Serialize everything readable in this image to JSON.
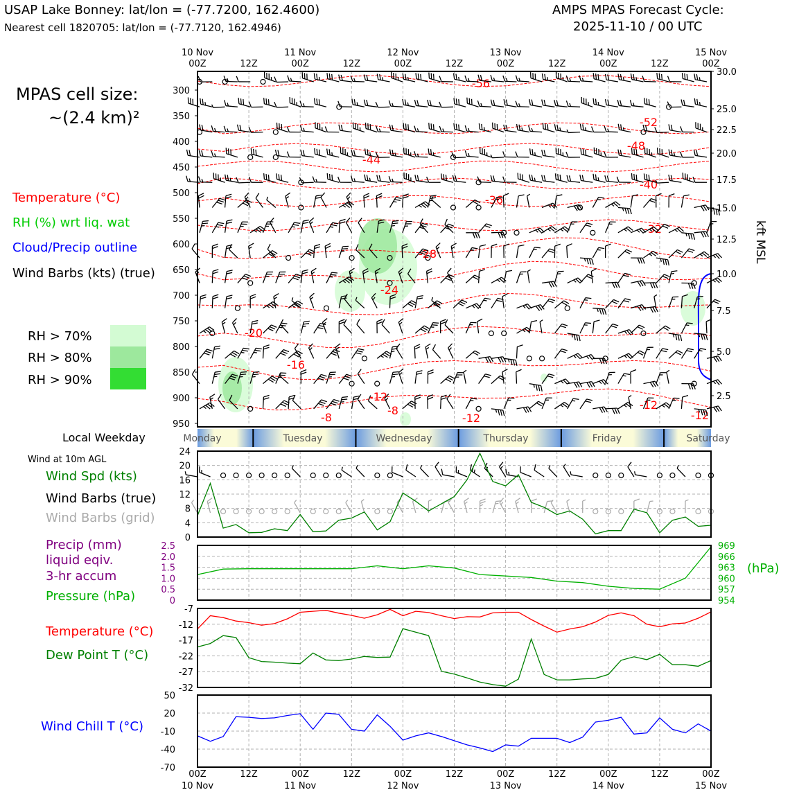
{
  "header": {
    "title_left": "USAP Lake Bonney: lat/lon = (-77.7200, 162.4600)",
    "subtitle_left": "Nearest cell 1820705: lat/lon = (-77.7120, 162.4946)",
    "title_right_1": "AMPS MPAS Forecast Cycle:",
    "title_right_2": "2025-11-10 / 00 UTC"
  },
  "sidebar": {
    "cell_size_1": "MPAS cell size:",
    "cell_size_2": "~(2.4 km)²",
    "legend_temperature": "Temperature (°C)",
    "legend_rh": "RH (%) wrt liq. wat",
    "legend_cloud": "Cloud/Precip outline",
    "legend_wind": "Wind Barbs (kts) (true)",
    "rh_70": "RH > 70%",
    "rh_80": "RH > 80%",
    "rh_90": "RH > 90%",
    "local_weekday": "Local Weekday",
    "wind_at": "Wind at 10m AGL",
    "wind_spd": "Wind Spd (kts)",
    "wind_barbs_true": "Wind Barbs (true)",
    "wind_barbs_grid": "Wind Barbs (grid)",
    "precip_1": "Precip (mm)",
    "precip_2": "liquid eqiv.",
    "precip_3": "3-hr accum",
    "pressure": "Pressure (hPa)",
    "temperature": "Temperature (°C)",
    "dewpoint": "Dew Point T (°C)",
    "windchill": "Wind Chill T (°C)",
    "pressure_unit": "(hPa)",
    "kft_label": "kft MSL"
  },
  "colors": {
    "temperature": "#ff0000",
    "rh": "#00cc00",
    "cloud": "#0000ff",
    "precip": "#800080",
    "pressure": "#00b000",
    "dewpoint": "#008000",
    "windchill": "#0000ff",
    "rh70": "#d3fbd3",
    "rh80": "#9de89d",
    "rh90": "#33dd33"
  },
  "time_axis": {
    "top_labels": [
      {
        "day": "10 Nov",
        "hour": "00Z"
      },
      {
        "day": "",
        "hour": "12Z"
      },
      {
        "day": "11 Nov",
        "hour": "00Z"
      },
      {
        "day": "",
        "hour": "12Z"
      },
      {
        "day": "12 Nov",
        "hour": "00Z"
      },
      {
        "day": "",
        "hour": "12Z"
      },
      {
        "day": "13 Nov",
        "hour": "00Z"
      },
      {
        "day": "",
        "hour": "12Z"
      },
      {
        "day": "14 Nov",
        "hour": "00Z"
      },
      {
        "day": "",
        "hour": "12Z"
      },
      {
        "day": "15 Nov",
        "hour": "00Z"
      }
    ],
    "bottom_labels": [
      {
        "hour": "00Z",
        "day": "10 Nov"
      },
      {
        "hour": "12Z",
        "day": ""
      },
      {
        "hour": "00Z",
        "day": "11 Nov"
      },
      {
        "hour": "12Z",
        "day": ""
      },
      {
        "hour": "00Z",
        "day": "12 Nov"
      },
      {
        "hour": "12Z",
        "day": ""
      },
      {
        "hour": "00Z",
        "day": "13 Nov"
      },
      {
        "hour": "12Z",
        "day": ""
      },
      {
        "hour": "00Z",
        "day": "14 Nov"
      },
      {
        "hour": "12Z",
        "day": ""
      },
      {
        "hour": "00Z",
        "day": "15 Nov"
      }
    ],
    "weekdays": [
      "Monday",
      "Tuesday",
      "Wednesday",
      "Thursday",
      "Friday",
      "Saturday"
    ]
  },
  "chart_data": [
    {
      "type": "heatmap",
      "name": "time-height cross section",
      "y_left_ticks": [
        "300",
        "350",
        "400",
        "450",
        "500",
        "550",
        "600",
        "650",
        "700",
        "750",
        "800",
        "850",
        "900",
        "950"
      ],
      "y_right_ticks": [
        "30.0",
        "25.0",
        "22.5",
        "20.0",
        "17.5",
        "15.0",
        "12.5",
        "10.0",
        "7.5",
        "5.0",
        "2.5"
      ],
      "ylabel_right": "kft MSL",
      "temperature_contour_labels": [
        "-56",
        "-52",
        "-48",
        "-44",
        "-40",
        "-36",
        "-32",
        "-28",
        "-24",
        "-20",
        "-16",
        "-12",
        "-12",
        "-8",
        "-8",
        "-12",
        "-12"
      ],
      "grid": true
    },
    {
      "type": "line",
      "name": "10m wind speed",
      "ylim": [
        0,
        24
      ],
      "yticks": [
        "0",
        "4",
        "8",
        "12",
        "16",
        "20",
        "24"
      ],
      "x_hours": [
        0,
        3,
        6,
        9,
        12,
        15,
        18,
        21,
        24,
        27,
        30,
        33,
        36,
        39,
        42,
        45,
        48,
        51,
        54,
        57,
        60,
        63,
        66,
        69,
        72,
        75,
        78,
        81,
        84,
        87,
        90,
        93,
        96,
        99,
        102,
        105,
        108,
        111,
        114,
        117,
        120
      ],
      "values": [
        6,
        15,
        2.5,
        3.5,
        1.2,
        1.3,
        2.3,
        1.8,
        6.3,
        1.5,
        1.7,
        4.7,
        5.3,
        7,
        2,
        4.3,
        12.3,
        10,
        7.3,
        9.3,
        11.3,
        16,
        23.4,
        15.5,
        14.3,
        17.4,
        9.7,
        8.3,
        6.3,
        7.3,
        5,
        0.9,
        1.8,
        1.8,
        7.8,
        6.8,
        1.2,
        4.7,
        5.6,
        3,
        3.3
      ]
    },
    {
      "type": "line",
      "name": "pressure",
      "ylim": [
        954,
        969
      ],
      "yticks_right": [
        "954",
        "957",
        "960",
        "963",
        "966",
        "969"
      ],
      "yticks_left_precip": [
        "0",
        "0.5",
        "1.0",
        "1.5",
        "2.0",
        "2.5"
      ],
      "x_hours": [
        0,
        6,
        12,
        18,
        24,
        30,
        36,
        42,
        48,
        54,
        60,
        66,
        72,
        78,
        84,
        90,
        96,
        102,
        108,
        114,
        120
      ],
      "values": [
        961,
        962.5,
        962.6,
        962.6,
        962.6,
        962.6,
        962.6,
        963.4,
        962.6,
        963.4,
        962.8,
        961,
        960.6,
        960.2,
        959.2,
        958.8,
        957.8,
        957.2,
        957,
        960,
        968.6
      ]
    },
    {
      "type": "line",
      "name": "temperature and dew point",
      "ylim": [
        -32,
        -7
      ],
      "yticks": [
        "-7",
        "-12",
        "-17",
        "-22",
        "-27",
        "-32"
      ],
      "series": [
        {
          "name": "Temperature (°C)",
          "x_hours": [
            0,
            3,
            6,
            9,
            12,
            15,
            18,
            21,
            24,
            27,
            30,
            33,
            36,
            39,
            42,
            45,
            48,
            51,
            54,
            57,
            60,
            63,
            66,
            69,
            72,
            75,
            78,
            81,
            84,
            87,
            90,
            93,
            96,
            99,
            102,
            105,
            108,
            111,
            114,
            117,
            120
          ],
          "values": [
            -13.5,
            -9.3,
            -9.9,
            -11,
            -11.5,
            -12.3,
            -11.8,
            -10.3,
            -8.2,
            -7.9,
            -7.6,
            -8.5,
            -9.2,
            -10.1,
            -9,
            -7.3,
            -9.3,
            -7.9,
            -8.3,
            -9.3,
            -10.2,
            -9.6,
            -9.7,
            -8.4,
            -8.2,
            -8.2,
            -10.5,
            -12.6,
            -14.5,
            -13.5,
            -12.8,
            -11.3,
            -9.2,
            -8.4,
            -9.3,
            -12,
            -12.8,
            -11.9,
            -11.6,
            -10.1,
            -8.1
          ]
        },
        {
          "name": "Dew Point T (°C)",
          "x_hours": [
            0,
            3,
            6,
            9,
            12,
            15,
            18,
            21,
            24,
            27,
            30,
            33,
            36,
            39,
            42,
            45,
            48,
            51,
            54,
            57,
            60,
            63,
            66,
            69,
            72,
            75,
            78,
            81,
            84,
            87,
            90,
            93,
            96,
            99,
            102,
            105,
            108,
            111,
            114,
            117,
            120
          ],
          "values": [
            -19.2,
            -18.1,
            -15.6,
            -16.2,
            -22.6,
            -23.8,
            -24,
            -24.3,
            -24.5,
            -21.1,
            -23.3,
            -23.5,
            -23,
            -22.2,
            -22.5,
            -22.4,
            -13.4,
            -14.5,
            -15.6,
            -26.9,
            -27.8,
            -29,
            -30.3,
            -31.1,
            -31.6,
            -29.4,
            -16.7,
            -27.9,
            -29.6,
            -29.6,
            -29.3,
            -29.1,
            -27.9,
            -23.4,
            -22.3,
            -23.2,
            -21.5,
            -24.8,
            -24.8,
            -25.3,
            -23.5
          ]
        }
      ]
    },
    {
      "type": "line",
      "name": "wind chill",
      "ylim": [
        -70,
        50
      ],
      "yticks": [
        "-70",
        "-40",
        "-10",
        "20",
        "50"
      ],
      "x_hours": [
        0,
        3,
        6,
        9,
        12,
        15,
        18,
        21,
        24,
        27,
        30,
        33,
        36,
        39,
        42,
        45,
        48,
        51,
        54,
        57,
        60,
        63,
        66,
        69,
        72,
        75,
        78,
        81,
        84,
        87,
        90,
        93,
        96,
        99,
        102,
        105,
        108,
        111,
        114,
        117,
        120
      ],
      "values": [
        -18,
        -27,
        -19,
        14,
        13,
        11,
        12,
        16,
        19,
        -7,
        20,
        18,
        -7,
        -10,
        17,
        -2,
        -25,
        -18,
        -13,
        -19,
        -26,
        -33,
        -38,
        -44,
        -33,
        -35,
        -22,
        -22,
        -22,
        -29,
        -20,
        5,
        8,
        13,
        -15,
        -13,
        12,
        -7,
        -13,
        2,
        -10
      ]
    }
  ]
}
